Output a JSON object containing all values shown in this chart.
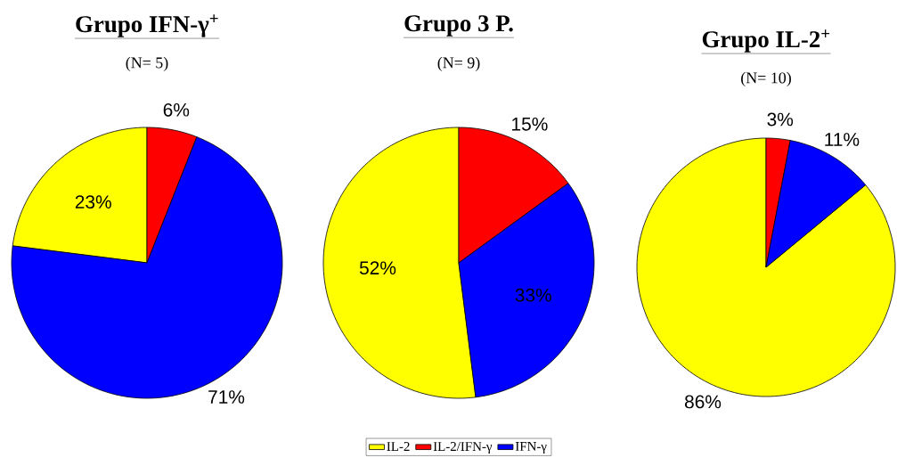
{
  "chart_data": [
    {
      "type": "pie",
      "title": "Grupo IFN-γ$^{+}$",
      "subtitle": "(N= 5)",
      "categories": [
        null,
        null,
        null
      ],
      "values": [
        23,
        6,
        71
      ],
      "value_labels": [
        "23%",
        "6%",
        "71%"
      ],
      "colors": [
        "#ffff00",
        "#ff0000",
        "#0000ff"
      ]
    },
    {
      "type": "pie",
      "title": "Grupo 3 P.",
      "subtitle": "(N= 9)",
      "categories": [
        "IL-2",
        "IL-2/IFN-γ",
        "IFN-γ"
      ],
      "values": [
        52,
        15,
        33
      ],
      "value_labels": [
        "52%",
        "15%",
        "33%"
      ],
      "colors": [
        "#ffff00",
        "#ff0000",
        "#0000ff"
      ],
      "legend": "bottom"
    },
    {
      "type": "pie",
      "title": "Grupo IL-2$^{+}$",
      "subtitle": "(N= 10)",
      "categories": [
        null,
        null,
        null
      ],
      "values": [
        86,
        3,
        11
      ],
      "value_labels": [
        "86%",
        "3%",
        "11%"
      ],
      "colors": [
        "#ffff00",
        "#ff0000",
        "#0000ff"
      ]
    }
  ]
}
